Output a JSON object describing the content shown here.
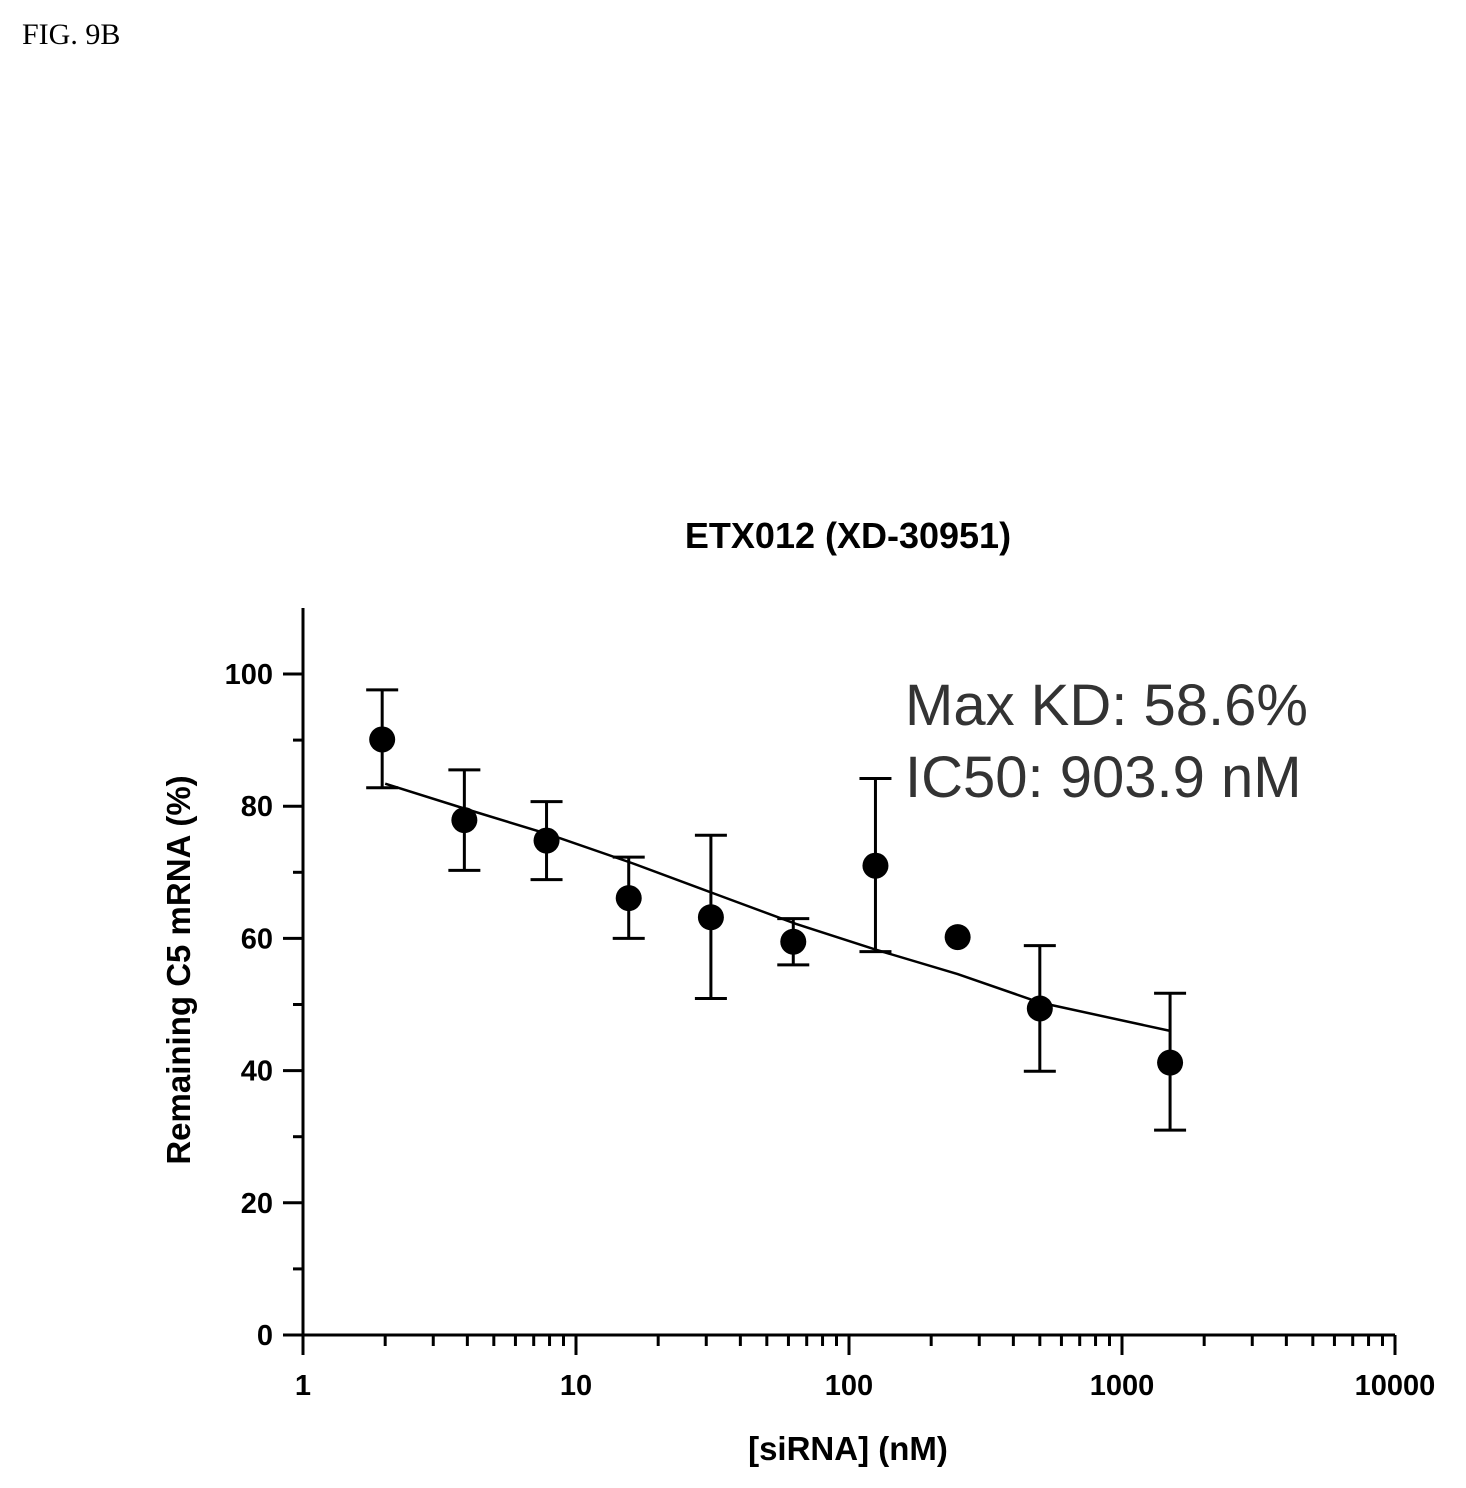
{
  "figure_label": "FIG. 9B",
  "chart_data": {
    "type": "scatter",
    "title": "ETX012 (XD-30951)",
    "xlabel": "[siRNA] (nM)",
    "ylabel": "Remaining C5 mRNA (%)",
    "xscale": "log",
    "xlim": [
      1,
      10000
    ],
    "ylim": [
      0,
      110
    ],
    "x_ticks": [
      1,
      10,
      100,
      1000,
      10000
    ],
    "y_ticks": [
      0,
      20,
      40,
      60,
      80,
      100
    ],
    "grid": false,
    "legend": "none",
    "annotations": [
      "Max KD: 58.6%",
      "IC50: 903.9 nM"
    ],
    "series": [
      {
        "points": [
          {
            "x": 1.95,
            "y": 90.1,
            "err_low": 82.8,
            "err_high": 97.6
          },
          {
            "x": 3.9,
            "y": 77.9,
            "err_low": 70.3,
            "err_high": 85.5
          },
          {
            "x": 7.8,
            "y": 74.8,
            "err_low": 68.9,
            "err_high": 80.7
          },
          {
            "x": 15.6,
            "y": 66.1,
            "err_low": 60.0,
            "err_high": 72.3
          },
          {
            "x": 31.2,
            "y": 63.2,
            "err_low": 50.9,
            "err_high": 75.6
          },
          {
            "x": 62.5,
            "y": 59.5,
            "err_low": 56.0,
            "err_high": 63.0
          },
          {
            "x": 125,
            "y": 71.0,
            "err_low": 58.0,
            "err_high": 84.2
          },
          {
            "x": 250,
            "y": 60.2
          },
          {
            "x": 500,
            "y": 49.4,
            "err_low": 39.9,
            "err_high": 58.9
          },
          {
            "x": 1500,
            "y": 41.2,
            "err_low": 31.0,
            "err_high": 51.7
          }
        ]
      }
    ],
    "fit_curve": [
      {
        "x": 2,
        "y": 83.4
      },
      {
        "x": 4,
        "y": 79.5
      },
      {
        "x": 8,
        "y": 75.7
      },
      {
        "x": 16,
        "y": 71.4
      },
      {
        "x": 32,
        "y": 66.8
      },
      {
        "x": 64,
        "y": 62.2
      },
      {
        "x": 125,
        "y": 58.3
      },
      {
        "x": 250,
        "y": 54.6
      },
      {
        "x": 500,
        "y": 50.3
      },
      {
        "x": 1500,
        "y": 46.0
      }
    ]
  }
}
